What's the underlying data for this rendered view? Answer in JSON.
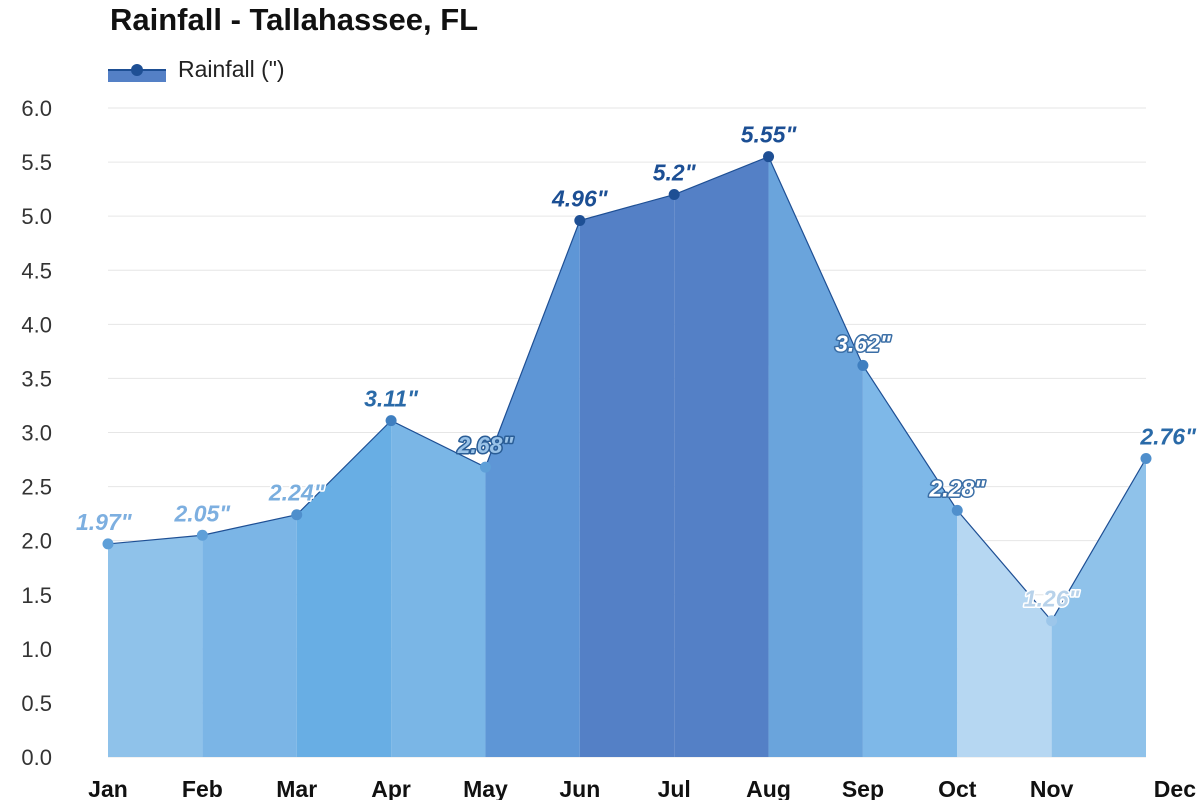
{
  "chart_data": {
    "type": "area",
    "title": "Rainfall - Tallahassee, FL",
    "xlabel": "",
    "ylabel": "",
    "categories": [
      "Jan",
      "Feb",
      "Mar",
      "Apr",
      "May",
      "Jun",
      "Jul",
      "Aug",
      "Sep",
      "Oct",
      "Nov",
      "Dec"
    ],
    "series": [
      {
        "name": "Rainfall (\")",
        "values": [
          1.97,
          2.05,
          2.24,
          3.11,
          2.68,
          4.96,
          5.2,
          5.55,
          3.62,
          2.28,
          1.26,
          2.76
        ],
        "data_labels": [
          "1.97\"",
          "2.05\"",
          "2.24\"",
          "3.11\"",
          "2.68\"",
          "4.96\"",
          "5.2\"",
          "5.55\"",
          "3.62\"",
          "2.28\"",
          "1.26\"",
          "2.76\""
        ]
      }
    ],
    "ylim": [
      0,
      6
    ],
    "yticks": [
      "0.0",
      "0.5",
      "1.0",
      "1.5",
      "2.0",
      "2.5",
      "3.0",
      "3.5",
      "4.0",
      "4.5",
      "5.0",
      "5.5",
      "6.0"
    ],
    "grid": true,
    "legend_position": "top-left",
    "segment_colors": [
      "#8fc2ea",
      "#7bb5e6",
      "#68aee4",
      "#7ab6e6",
      "#5e96d6",
      "#5480c6",
      "#5480c6",
      "#6aa4dc",
      "#7eb8e8",
      "#b6d7f2",
      "#8fc2ea",
      "#7bb5e6"
    ],
    "label_colors": [
      "#7dafe0",
      "#7dafe0",
      "#7aaede",
      "#2a6aa8",
      "#9ac3e8",
      "#1c4f94",
      "#1c4f94",
      "#1c4f94",
      "#ffffff",
      "#ffffff",
      "#b8d2ea",
      "#2a6aa8"
    ],
    "label_outline_colors": [
      "#ffffff",
      "#ffffff",
      "#ffffff",
      "#ffffff",
      "#2a5d96",
      "#ffffff",
      "#ffffff",
      "#ffffff",
      "#3a6ea6",
      "#3a6ea6",
      "#ffffff",
      "#ffffff"
    ],
    "point_colors": [
      "#5e9fd8",
      "#5e9fd8",
      "#4f8fcc",
      "#3f7fc0",
      "#5e9fd8",
      "#1e4f94",
      "#1e4f94",
      "#1e4f94",
      "#3f7fc0",
      "#4f8fcc",
      "#9cc6ea",
      "#4f8fcc"
    ],
    "line_color": "#1e4f94",
    "legend_swatch_color": "#5480c6",
    "legend_marker_color": "#1e4f94",
    "grid_color": "#e6e6e6"
  }
}
